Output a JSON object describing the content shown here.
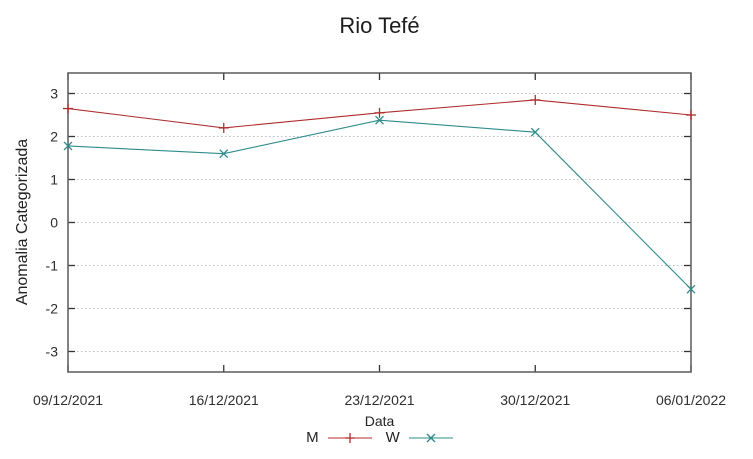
{
  "chart_data": {
    "type": "line",
    "title": "Rio Tefé",
    "xlabel": "Data",
    "ylabel": "Anomalia Categorizada",
    "x_categories": [
      "09/12/2021",
      "16/12/2021",
      "23/12/2021",
      "30/12/2021",
      "06/01/2022"
    ],
    "y_ticks": [
      -3,
      -2,
      -1,
      0,
      1,
      2,
      3
    ],
    "ylim": [
      -3.5,
      3.5
    ],
    "grid": "horizontal-dotted",
    "legend_position": "bottom-center",
    "series": [
      {
        "name": "M",
        "marker": "plus",
        "color": "#b02c2c",
        "values": [
          2.65,
          2.2,
          2.55,
          2.85,
          2.5
        ]
      },
      {
        "name": "W",
        "marker": "cross",
        "color": "#2e8b8b",
        "values": [
          1.78,
          1.6,
          2.38,
          2.1,
          -1.55
        ]
      }
    ]
  }
}
